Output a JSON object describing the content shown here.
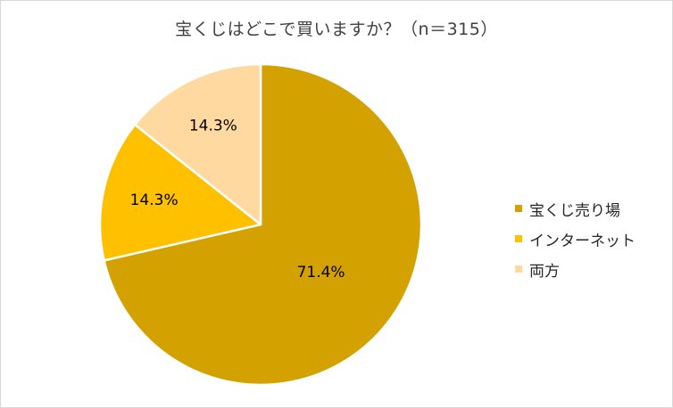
{
  "chart_data": {
    "type": "pie",
    "title": "宝くじはどこで買いますか？（n＝315）",
    "slices": [
      {
        "label": "宝くじ売り場",
        "value": 71.4,
        "display": "71.4%",
        "color": "#D4A200"
      },
      {
        "label": "インターネット",
        "value": 14.3,
        "display": "14.3%",
        "color": "#FFC000"
      },
      {
        "label": "両方",
        "value": 14.3,
        "display": "14.3%",
        "color": "#FFD9A0"
      }
    ],
    "legend_position": "right",
    "start_angle_deg": 0,
    "direction": "clockwise"
  }
}
